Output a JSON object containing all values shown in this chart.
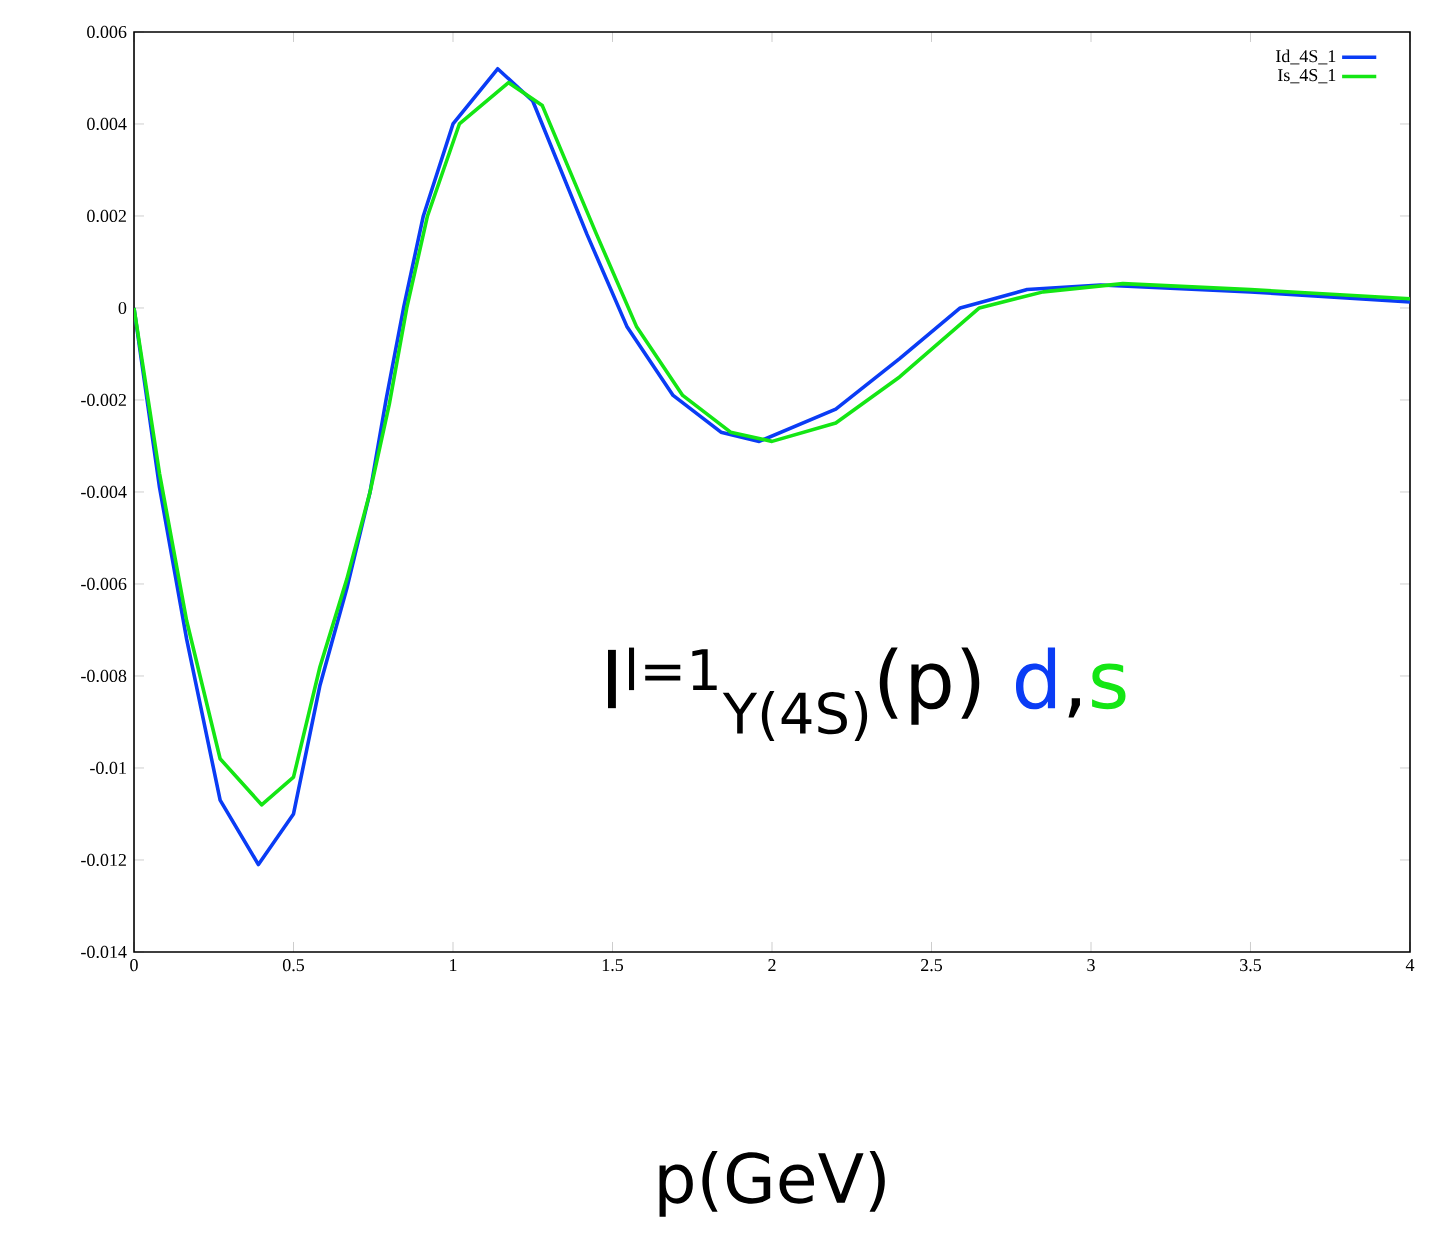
{
  "chart_data": {
    "type": "line",
    "xlabel": "p(GeV)",
    "annotations": [
      "I$^{l=1}$$_{Υ(4S)}$(p)",
      "d",
      ",",
      "s"
    ],
    "series": [
      {
        "name": "Id_4S_1",
        "color": "#0a3cf5",
        "x": [
          0,
          0.08,
          0.165,
          0.27,
          0.39,
          0.5,
          0.583,
          0.667,
          0.74,
          0.79,
          0.845,
          0.907,
          1.0,
          1.14,
          1.25,
          1.42,
          1.545,
          1.69,
          1.84,
          1.96,
          2.2,
          2.4,
          2.59,
          2.8,
          3.03,
          3.5,
          4.0
        ],
        "values": [
          0,
          -0.0039,
          -0.0072,
          -0.0107,
          -0.0121,
          -0.011,
          -0.0082,
          -0.0061,
          -0.004,
          -0.002,
          0,
          0.002,
          0.004,
          0.0052,
          0.0045,
          0.0016,
          -0.0004,
          -0.0019,
          -0.0027,
          -0.0029,
          -0.0022,
          -0.0011,
          0,
          0.0004,
          0.0005,
          0.00035,
          0.00013
        ]
      },
      {
        "name": "Is_4S_1",
        "color": "#14e614",
        "x": [
          0,
          0.08,
          0.165,
          0.27,
          0.4,
          0.5,
          0.583,
          0.667,
          0.74,
          0.8,
          0.855,
          0.92,
          1.02,
          1.174,
          1.28,
          1.45,
          1.575,
          1.72,
          1.87,
          2.0,
          2.2,
          2.4,
          2.65,
          2.85,
          3.1,
          3.5,
          4.0
        ],
        "values": [
          0,
          -0.0036,
          -0.0068,
          -0.0098,
          -0.0108,
          -0.0102,
          -0.0078,
          -0.0059,
          -0.004,
          -0.0021,
          0,
          0.002,
          0.004,
          0.0049,
          0.0044,
          0.0016,
          -0.0004,
          -0.0019,
          -0.0027,
          -0.0029,
          -0.0025,
          -0.0015,
          0,
          0.00035,
          0.00053,
          0.0004,
          0.0002
        ]
      }
    ],
    "xlim": [
      0,
      4
    ],
    "ylim": [
      -0.014,
      0.006
    ],
    "xticks": [
      0,
      0.5,
      1,
      1.5,
      2,
      2.5,
      3,
      3.5,
      4
    ],
    "yticks": [
      -0.014,
      -0.012,
      -0.01,
      -0.008,
      -0.006,
      -0.004,
      -0.002,
      0,
      0.002,
      0.004,
      0.006
    ],
    "legend": "top right",
    "grid": false
  }
}
